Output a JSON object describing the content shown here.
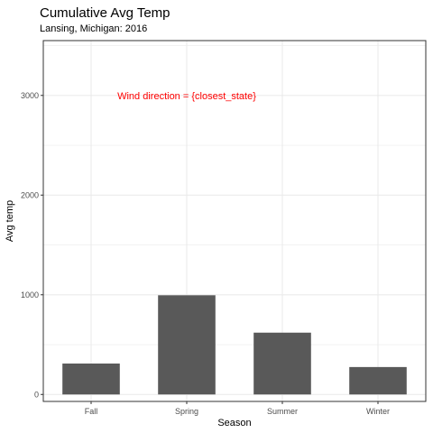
{
  "chart_data": {
    "type": "bar",
    "title": "Cumulative Avg Temp",
    "subtitle": "Lansing, Michigan: 2016",
    "xlabel": "Season",
    "ylabel": "Avg temp",
    "categories": [
      "Fall",
      "Spring",
      "Summer",
      "Winter"
    ],
    "values": [
      310,
      995,
      620,
      275
    ],
    "ylim": [
      -70,
      3550
    ],
    "yticks": [
      0,
      1000,
      2000,
      3000
    ],
    "y_minor_ticks": [
      500,
      1500,
      2500,
      3500
    ],
    "grid": true,
    "bar_color": "#595959",
    "grid_color": "#ebebeb",
    "panel_border_color": "#333333",
    "annotation": {
      "text": "Wind direction = {closest_state}",
      "color": "#ff0000",
      "x_category": "Spring",
      "y": 3000
    }
  }
}
